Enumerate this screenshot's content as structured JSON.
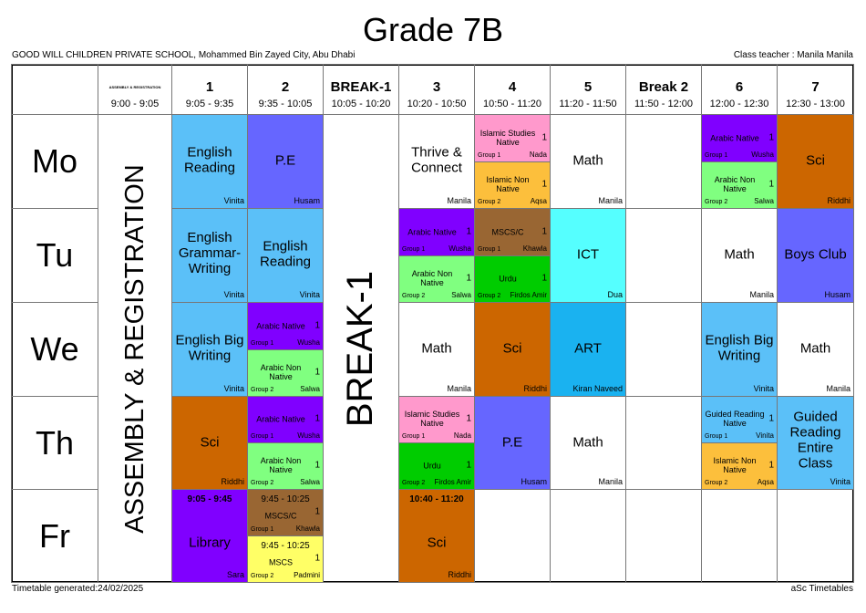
{
  "title": "Grade 7B",
  "school": "GOOD WILL CHILDREN PRIVATE SCHOOL, Mohammed Bin Zayed City, Abu Dhabi",
  "class_teacher": "Class teacher : Manila Manila",
  "footer_left": "Timetable generated:24/02/2025",
  "footer_right": "aSc Timetables",
  "periods": [
    {
      "label": "ASSEMBLY & REGISTRATION",
      "time": "9:00 - 9:05",
      "tiny": true
    },
    {
      "label": "1",
      "time": "9:05 - 9:35"
    },
    {
      "label": "2",
      "time": "9:35 - 10:05"
    },
    {
      "label": "BREAK-1",
      "time": "10:05 - 10:20"
    },
    {
      "label": "3",
      "time": "10:20 - 10:50"
    },
    {
      "label": "4",
      "time": "10:50 - 11:20"
    },
    {
      "label": "5",
      "time": "11:20 - 11:50"
    },
    {
      "label": "Break 2",
      "time": "11:50 - 12:00"
    },
    {
      "label": "6",
      "time": "12:00 - 12:30"
    },
    {
      "label": "7",
      "time": "12:30 - 13:00"
    }
  ],
  "days": [
    "Mo",
    "Tu",
    "We",
    "Th",
    "Fr"
  ],
  "merged": {
    "assembly": "ASSEMBLY & REGISTRATION",
    "break1": "BREAK-1"
  },
  "colors": {
    "blue": "#5bc0f8",
    "pe": "#6666ff",
    "purple": "#8000ff",
    "green": "#80ff80",
    "pink": "#ff99cc",
    "orange": "#fcbf3c",
    "sci": "#cc6600",
    "brown": "#996633",
    "dgreen": "#00cc00",
    "cyan": "#55ffff",
    "art": "#1ab2f0",
    "yellow": "#ffff66",
    "white": "#ffffff"
  },
  "cells": [
    {
      "day": 0,
      "col": 1,
      "part": "full",
      "subject": "English Reading",
      "teacher": "Vinita",
      "color": "blue"
    },
    {
      "day": 0,
      "col": 2,
      "part": "full",
      "subject": "P.E",
      "teacher": "Husam",
      "color": "pe"
    },
    {
      "day": 0,
      "col": 4,
      "part": "full",
      "subject": "Thrive & Connect",
      "teacher": "Manila",
      "color": "white"
    },
    {
      "day": 0,
      "col": 5,
      "part": "top",
      "subject": "Islamic Studies Native",
      "count": "1",
      "group": "Group 1",
      "teacher": "Nada",
      "color": "pink"
    },
    {
      "day": 0,
      "col": 5,
      "part": "bottom",
      "subject": "Islamic Non Native",
      "count": "1",
      "group": "Group 2",
      "teacher": "Aqsa",
      "color": "orange"
    },
    {
      "day": 0,
      "col": 6,
      "part": "full",
      "subject": "Math",
      "teacher": "Manila",
      "color": "white"
    },
    {
      "day": 0,
      "col": 8,
      "part": "top",
      "subject": "Arabic Native",
      "count": "1",
      "group": "Group 1",
      "teacher": "Wusha",
      "color": "purple"
    },
    {
      "day": 0,
      "col": 8,
      "part": "bottom",
      "subject": "Arabic Non Native",
      "count": "1",
      "group": "Group 2",
      "teacher": "Salwa",
      "color": "green"
    },
    {
      "day": 0,
      "col": 9,
      "part": "full",
      "subject": "Sci",
      "teacher": "Riddhi",
      "color": "sci"
    },
    {
      "day": 1,
      "col": 1,
      "part": "full",
      "subject": "English Grammar-Writing",
      "teacher": "Vinita",
      "color": "blue"
    },
    {
      "day": 1,
      "col": 2,
      "part": "full",
      "subject": "English Reading",
      "teacher": "Vinita",
      "color": "blue"
    },
    {
      "day": 1,
      "col": 4,
      "part": "top",
      "subject": "Arabic Native",
      "count": "1",
      "group": "Group 1",
      "teacher": "Wusha",
      "color": "purple"
    },
    {
      "day": 1,
      "col": 4,
      "part": "bottom",
      "subject": "Arabic Non Native",
      "count": "1",
      "group": "Group 2",
      "teacher": "Salwa",
      "color": "green"
    },
    {
      "day": 1,
      "col": 5,
      "part": "top",
      "subject": "MSCS/C",
      "count": "1",
      "group": "Group 1",
      "teacher": "Khawla",
      "color": "brown"
    },
    {
      "day": 1,
      "col": 5,
      "part": "bottom",
      "subject": "Urdu",
      "count": "1",
      "group": "Group 2",
      "teacher": "Firdos Amir",
      "color": "dgreen"
    },
    {
      "day": 1,
      "col": 6,
      "part": "full",
      "subject": "ICT",
      "teacher": "Dua",
      "color": "cyan"
    },
    {
      "day": 1,
      "col": 8,
      "part": "full",
      "subject": "Math",
      "teacher": "Manila",
      "color": "white"
    },
    {
      "day": 1,
      "col": 9,
      "part": "full",
      "subject": "Boys Club",
      "teacher": "Husam",
      "color": "pe"
    },
    {
      "day": 2,
      "col": 1,
      "part": "full",
      "subject": "English Big Writing",
      "teacher": "Vinita",
      "color": "blue"
    },
    {
      "day": 2,
      "col": 2,
      "part": "top",
      "subject": "Arabic Native",
      "count": "1",
      "group": "Group 1",
      "teacher": "Wusha",
      "color": "purple"
    },
    {
      "day": 2,
      "col": 2,
      "part": "bottom",
      "subject": "Arabic Non Native",
      "count": "1",
      "group": "Group 2",
      "teacher": "Salwa",
      "color": "green"
    },
    {
      "day": 2,
      "col": 4,
      "part": "full",
      "subject": "Math",
      "teacher": "Manila",
      "color": "white"
    },
    {
      "day": 2,
      "col": 5,
      "part": "full",
      "subject": "Sci",
      "teacher": "Riddhi",
      "color": "sci"
    },
    {
      "day": 2,
      "col": 6,
      "part": "full",
      "subject": "ART",
      "teacher": "Kiran Naveed",
      "color": "art"
    },
    {
      "day": 2,
      "col": 8,
      "part": "full",
      "subject": "English Big Writing",
      "teacher": "Vinita",
      "color": "blue"
    },
    {
      "day": 2,
      "col": 9,
      "part": "full",
      "subject": "Math",
      "teacher": "Manila",
      "color": "white"
    },
    {
      "day": 3,
      "col": 1,
      "part": "full",
      "subject": "Sci",
      "teacher": "Riddhi",
      "color": "sci"
    },
    {
      "day": 3,
      "col": 2,
      "part": "top",
      "subject": "Arabic Native",
      "count": "1",
      "group": "Group 1",
      "teacher": "Wusha",
      "color": "purple"
    },
    {
      "day": 3,
      "col": 2,
      "part": "bottom",
      "subject": "Arabic Non Native",
      "count": "1",
      "group": "Group 2",
      "teacher": "Salwa",
      "color": "green"
    },
    {
      "day": 3,
      "col": 4,
      "part": "top",
      "subject": "Islamic Studies Native",
      "count": "1",
      "group": "Group 1",
      "teacher": "Nada",
      "color": "pink"
    },
    {
      "day": 3,
      "col": 4,
      "part": "bottom",
      "subject": "Urdu",
      "count": "1",
      "group": "Group 2",
      "teacher": "Firdos Amir",
      "color": "dgreen"
    },
    {
      "day": 3,
      "col": 5,
      "part": "full",
      "subject": "P.E",
      "teacher": "Husam",
      "color": "pe"
    },
    {
      "day": 3,
      "col": 6,
      "part": "full",
      "subject": "Math",
      "teacher": "Manila",
      "color": "white"
    },
    {
      "day": 3,
      "col": 8,
      "part": "top",
      "subject": "Guided Reading Native",
      "count": "1",
      "group": "Group 1",
      "teacher": "Vinita",
      "color": "blue"
    },
    {
      "day": 3,
      "col": 8,
      "part": "bottom",
      "subject": "Islamic Non Native",
      "count": "1",
      "group": "Group 2",
      "teacher": "Aqsa",
      "color": "orange"
    },
    {
      "day": 3,
      "col": 9,
      "part": "full",
      "subject": "Guided Reading Entire Class",
      "teacher": "Vinita",
      "color": "blue"
    },
    {
      "day": 4,
      "col": 1,
      "part": "full",
      "subject": "Library",
      "teacher": "Sara",
      "time": "9:05 - 9:45",
      "color": "purple"
    },
    {
      "day": 4,
      "col": 2,
      "part": "top",
      "subject": "MSCS/C",
      "count": "1",
      "group": "Group 1",
      "teacher": "Khawla",
      "time": "9:45 - 10:25",
      "color": "brown"
    },
    {
      "day": 4,
      "col": 2,
      "part": "bottom",
      "subject": "MSCS",
      "count": "1",
      "group": "Group 2",
      "teacher": "Padmini",
      "time": "9:45 - 10:25",
      "color": "yellow"
    },
    {
      "day": 4,
      "col": 4,
      "part": "full",
      "subject": "Sci",
      "teacher": "Riddhi",
      "time": "10:40 - 11:20",
      "color": "sci"
    }
  ]
}
